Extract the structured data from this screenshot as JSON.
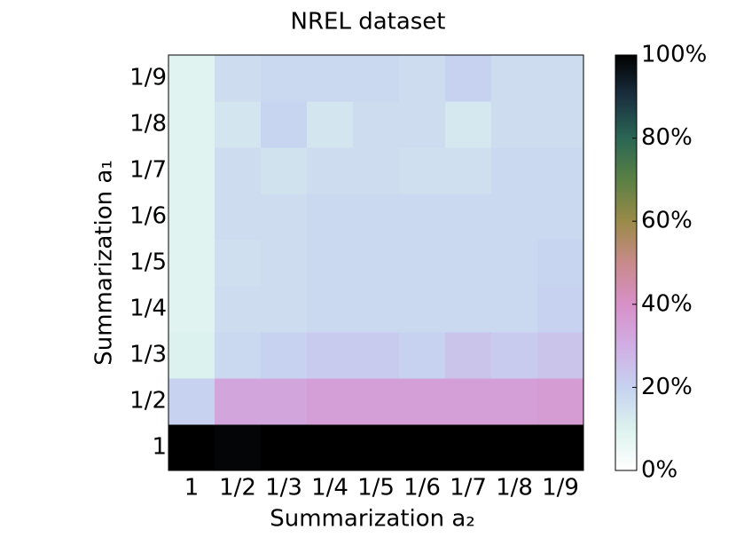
{
  "chart_data": {
    "type": "heatmap",
    "title": "NREL dataset",
    "xlabel": "Summarization a₂",
    "ylabel": "Summarization a₁",
    "x_categories": [
      "1",
      "1/2",
      "1/3",
      "1/4",
      "1/5",
      "1/6",
      "1/7",
      "1/8",
      "1/9"
    ],
    "y_categories": [
      "1",
      "1/2",
      "1/3",
      "1/4",
      "1/5",
      "1/6",
      "1/7",
      "1/8",
      "1/9"
    ],
    "z": [
      [
        100,
        99,
        100,
        100,
        100,
        100,
        100,
        100,
        100
      ],
      [
        20,
        33,
        33,
        35,
        35,
        35,
        35,
        35,
        36
      ],
      [
        10,
        18,
        20,
        22,
        22,
        20,
        24,
        22,
        24
      ],
      [
        9,
        17,
        17,
        18,
        18,
        18,
        18,
        18,
        20
      ],
      [
        9,
        16,
        17,
        18,
        18,
        18,
        18,
        18,
        19
      ],
      [
        9,
        17,
        17,
        18,
        18,
        18,
        18,
        18,
        18
      ],
      [
        9,
        17,
        15,
        17,
        17,
        16,
        16,
        18,
        18
      ],
      [
        9,
        14,
        19,
        14,
        17,
        17,
        13,
        17,
        17
      ],
      [
        9,
        17,
        18,
        18,
        18,
        17,
        20,
        17,
        17
      ]
    ],
    "zlim": [
      0,
      100
    ],
    "colorbar_ticks": [
      {
        "value": 0,
        "label": "0%"
      },
      {
        "value": 20,
        "label": "20%"
      },
      {
        "value": 40,
        "label": "40%"
      },
      {
        "value": 60,
        "label": "60%"
      },
      {
        "value": 80,
        "label": "80%"
      },
      {
        "value": 100,
        "label": "100%"
      }
    ],
    "colormap": [
      "#ffffff",
      "#dcf2ee",
      "#c6d2f0",
      "#d0aee4",
      "#d890c8",
      "#c88a8a",
      "#9a8a48",
      "#5a8044",
      "#2a6654",
      "#1a3040",
      "#000000"
    ]
  }
}
